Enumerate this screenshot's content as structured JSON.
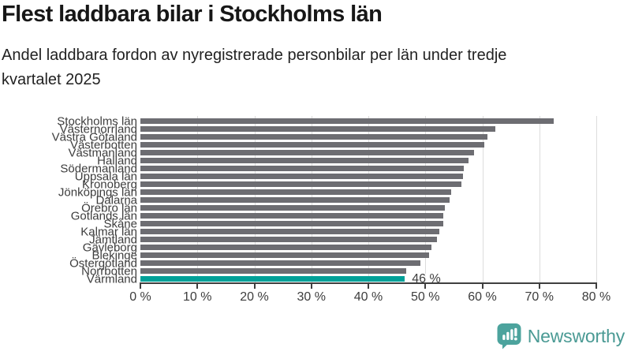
{
  "header": {
    "title": "Flest laddbara bilar i Stockholms län",
    "subtitle": "Andel laddbara fordon av nyregistrerade personbilar per län under tredje\nkvartalet 2025"
  },
  "chart_data": {
    "type": "bar",
    "orientation": "horizontal",
    "title": "Flest laddbara bilar i Stockholms län",
    "subtitle": "Andel laddbara fordon av nyregistrerade personbilar per län under tredje kvartalet 2025",
    "categories": [
      "Stockholms län",
      "Västernorrland",
      "Västra Götaland",
      "Västerbotten",
      "Västmanland",
      "Halland",
      "Södermanland",
      "Uppsala län",
      "Kronoberg",
      "Jönköpings län",
      "Dalarna",
      "Örebro län",
      "Gotlands län",
      "Skåne",
      "Kalmar län",
      "Jämtland",
      "Gävleborg",
      "Blekinge",
      "Östergötland",
      "Norrbotten",
      "Värmland"
    ],
    "values": [
      72.5,
      62.3,
      60.9,
      60.3,
      58.5,
      57.6,
      56.7,
      56.6,
      56.3,
      54.5,
      54.2,
      53.4,
      53.2,
      53.1,
      52.5,
      52.1,
      51.1,
      50.6,
      49.2,
      46.7,
      46.4
    ],
    "unit": "%",
    "xlim": [
      0,
      80
    ],
    "x_ticks": [
      0,
      10,
      20,
      30,
      40,
      50,
      60,
      70,
      80
    ],
    "x_tick_labels": [
      "0 %",
      "10 %",
      "20 %",
      "30 %",
      "40 %",
      "50 %",
      "60 %",
      "70 %",
      "80 %"
    ],
    "grid": true,
    "legend": false,
    "highlight": {
      "index": 20,
      "category": "Värmland",
      "label": "46 %"
    }
  },
  "footer": {
    "brand": "Newsworthy"
  },
  "colors": {
    "bar_gray": "#6d6d72",
    "accent_teal": "#00a098",
    "grid": "#dcdcdc",
    "axis": "#3f3f3f",
    "logo_teal": "#4ca39d"
  }
}
